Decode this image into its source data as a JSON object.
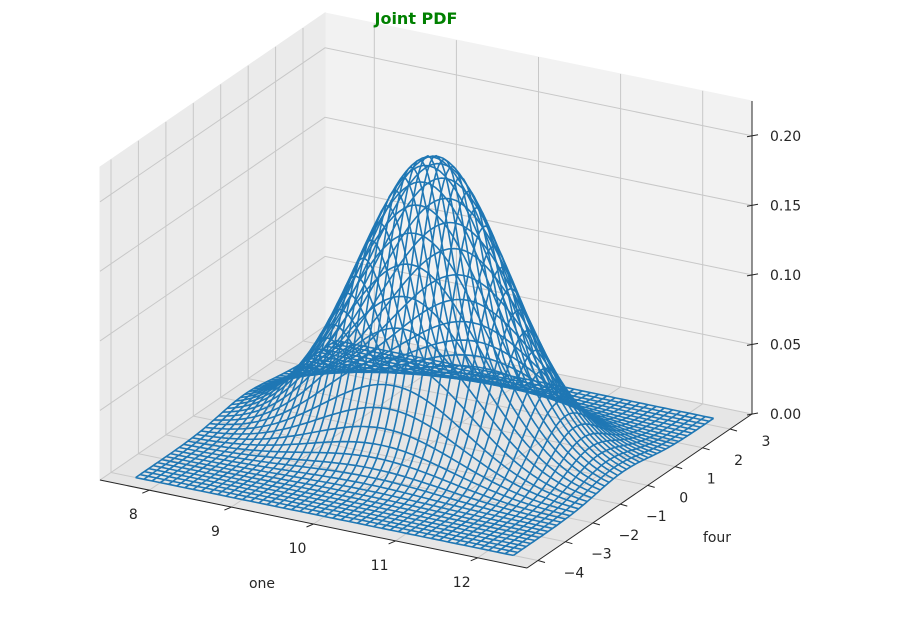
{
  "chart_data": {
    "type": "surface-wireframe",
    "title": "Joint PDF",
    "title_color": "#008000",
    "xlabel": "one",
    "ylabel": "four",
    "zlabel": "",
    "x_ticks": [
      "8",
      "9",
      "10",
      "11",
      "12"
    ],
    "y_ticks": [
      "−4",
      "−3",
      "−2",
      "−1",
      "0",
      "1",
      "2",
      "3"
    ],
    "z_ticks": [
      "0.00",
      "0.05",
      "0.10",
      "0.15",
      "0.20"
    ],
    "xlim": [
      7.4,
      12.6
    ],
    "ylim": [
      -4.4,
      3.8
    ],
    "zlim": [
      0,
      0.225
    ],
    "grid": true,
    "surface": {
      "color": "#1f77b4",
      "distribution": "bivariate normal",
      "mean_one": 10,
      "mean_four": 0,
      "std_one": 0.87,
      "std_four": 0.93,
      "peak_density": 0.205
    }
  }
}
